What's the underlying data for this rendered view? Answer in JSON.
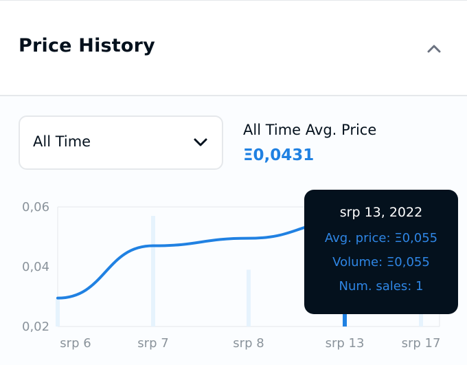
{
  "header": {
    "title": "Price History",
    "collapse_icon": "chevron-up-icon"
  },
  "filter": {
    "selected": "All Time",
    "chevron_icon": "chevron-down-icon"
  },
  "summary": {
    "label": "All Time Avg. Price",
    "value": "Ξ0,0431"
  },
  "tooltip": {
    "date": "srp 13, 2022",
    "avg_price": "Avg. price: Ξ0,055",
    "volume": "Volume: Ξ0,055",
    "num_sales": "Num. sales: 1"
  },
  "colors": {
    "accent": "#2081e2",
    "text": "#04111d",
    "tooltip_bg": "#04111d",
    "volume_bar": "#e6f3fd"
  },
  "chart_data": {
    "type": "line",
    "x_labels": [
      "srp 6",
      "srp 7",
      "srp 8",
      "srp 13",
      "srp 17"
    ],
    "y_ticks": [
      "0,02",
      "0,04",
      "0,06"
    ],
    "ylim": [
      0.02,
      0.06
    ],
    "series": [
      {
        "values": [
          0.0295,
          0.047,
          0.0495,
          0.055,
          0.055
        ]
      }
    ],
    "volume": [
      0.0295,
      0.057,
      0.039,
      0.055,
      0.055
    ],
    "grid": true,
    "highlighted_index": 3
  }
}
